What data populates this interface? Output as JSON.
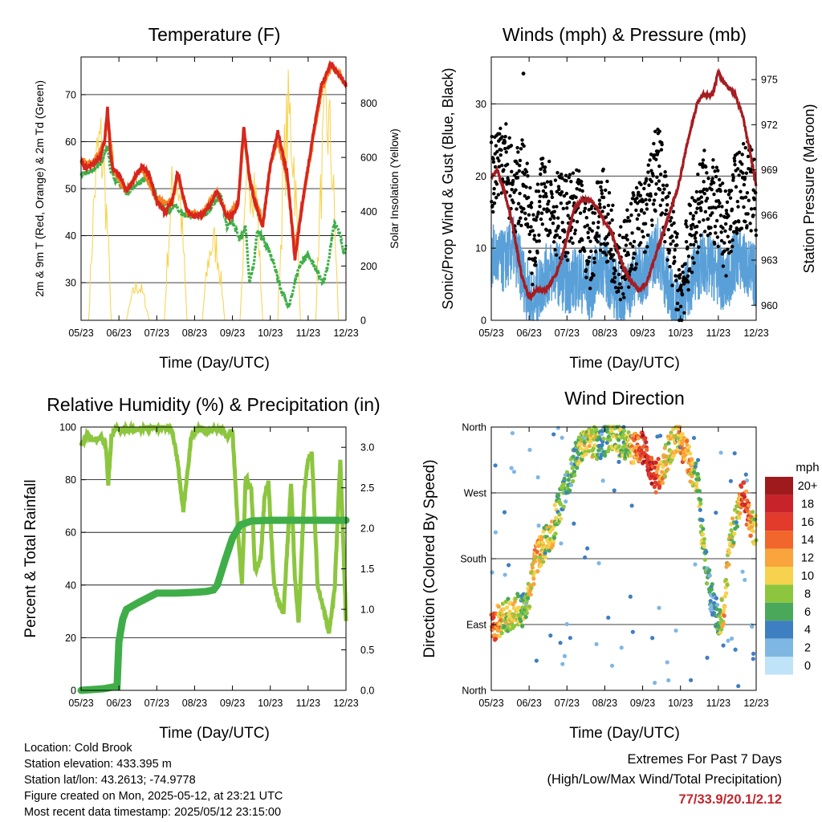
{
  "colors": {
    "temp_red": "#d7261e",
    "temp_orange": "#f58220",
    "dewpoint_green": "#3fae49",
    "solar_yellow": "#f7d24a",
    "wind_blue": "#5aa0d8",
    "gust_black": "#000000",
    "pressure_maroon": "#a51d22",
    "rh_green": "#8cc63f",
    "precip_green": "#3fae49",
    "extremes_red": "#c0272d"
  },
  "panels": {
    "temperature": {
      "title": "Temperature (F)",
      "xlabel": "Time (Day/UTC)",
      "ylabel_left": "2m & 9m T (Red, Orange) & 2m Td (Green)",
      "ylabel_right": "Solar Insolation (Yellow)",
      "yticks_left": [
        "30",
        "40",
        "50",
        "60",
        "70"
      ],
      "yticks_right": [
        "0",
        "200",
        "400",
        "600",
        "800"
      ]
    },
    "winds": {
      "title": "Winds (mph) & Pressure (mb)",
      "xlabel": "Time (Day/UTC)",
      "ylabel_left": "Sonic/Prop Wind & Gust (Blue, Black)",
      "ylabel_right": "Station Pressure (Maroon)",
      "yticks_left": [
        "0",
        "10",
        "20",
        "30"
      ],
      "yticks_right": [
        "960",
        "963",
        "966",
        "969",
        "972",
        "975"
      ]
    },
    "humidity": {
      "title": "Relative Humidity (%) & Precipitation (in)",
      "xlabel": "Time (Day/UTC)",
      "ylabel_left": "Percent & Total Rainfall",
      "yticks_left": [
        "0",
        "20",
        "40",
        "60",
        "80",
        "100"
      ],
      "yticks_right": [
        "0.0",
        "0.5",
        "1.0",
        "1.5",
        "2.0",
        "2.5",
        "3.0"
      ]
    },
    "direction": {
      "title": "Wind Direction",
      "xlabel": "Time (Day/UTC)",
      "ylabel_left": "Direction (Colored By Speed)",
      "yticks_left": [
        "North",
        "East",
        "South",
        "West",
        "North"
      ],
      "legend_title": "mph",
      "legend_labels": [
        "20+",
        "18",
        "16",
        "14",
        "12",
        "10",
        "8",
        "6",
        "4",
        "2",
        "0"
      ],
      "legend_colors": [
        "#9e1a1d",
        "#c8232a",
        "#e23a2b",
        "#f0662b",
        "#f9a43c",
        "#f6d24e",
        "#8cc63f",
        "#4aa85a",
        "#3e7fc1",
        "#7fb7e3",
        "#bfe3f7"
      ]
    }
  },
  "xticks": [
    "05/23",
    "06/23",
    "07/23",
    "08/23",
    "09/23",
    "10/23",
    "11/23",
    "12/23"
  ],
  "info": {
    "location": "Location: Cold Brook",
    "elevation": "Station elevation: 433.395 m",
    "latlon": "Station lat/lon: 43.2613; -74.9778",
    "created": "Figure created on Mon, 2025-05-12, at 23:21 UTC",
    "recent": "Most recent data timestamp: 2025/05/12 23:15:00"
  },
  "extremes": {
    "title": "Extremes For Past 7 Days",
    "subtitle": "(High/Low/Max Wind/Total Precipitation)",
    "values": "77/33.9/20.1/2.12"
  },
  "chart_data": [
    {
      "type": "line",
      "title": "Temperature (F)",
      "xlabel": "Time (Day/UTC)",
      "ylabel": "2m & 9m T (Red, Orange) & 2m Td (Green)",
      "ylabel_right": "Solar Insolation (Yellow)",
      "xlim": [
        0,
        7
      ],
      "ylim": [
        22,
        78
      ],
      "ylim_right": [
        0,
        970
      ],
      "x_tick_labels": [
        "05/23",
        "06/23",
        "07/23",
        "08/23",
        "09/23",
        "10/23",
        "11/23",
        "12/23"
      ],
      "series": [
        {
          "name": "2m T",
          "color": "#d7261e",
          "x": [
            0,
            0.1,
            0.3,
            0.5,
            0.62,
            0.7,
            0.78,
            0.85,
            1.0,
            1.2,
            1.4,
            1.6,
            1.8,
            2.0,
            2.2,
            2.4,
            2.55,
            2.68,
            2.8,
            3.0,
            3.2,
            3.4,
            3.6,
            3.85,
            4.0,
            4.15,
            4.3,
            4.45,
            4.6,
            4.8,
            5.0,
            5.2,
            5.45,
            5.65,
            5.85,
            6.1,
            6.35,
            6.6,
            6.75,
            6.85,
            6.95,
            7.0
          ],
          "y": [
            56,
            54.5,
            55,
            56.5,
            60,
            67,
            57,
            54,
            53,
            49.5,
            52,
            54.5,
            53,
            47.5,
            45,
            47,
            53.5,
            49,
            45,
            44,
            44.5,
            46.5,
            49.5,
            44,
            44,
            47,
            63.5,
            52,
            47,
            42,
            55,
            62,
            53,
            35,
            47,
            60,
            72,
            76.5,
            75,
            74,
            72.5,
            72
          ]
        },
        {
          "name": "9m T",
          "color": "#f58220",
          "x": [
            0,
            0.3,
            0.62,
            0.7,
            0.85,
            1.2,
            1.6,
            2.0,
            2.4,
            2.55,
            2.8,
            3.2,
            3.6,
            3.85,
            4.15,
            4.3,
            4.45,
            4.8,
            5.0,
            5.2,
            5.45,
            5.65,
            5.85,
            6.1,
            6.35,
            6.6,
            6.85,
            7.0
          ],
          "y": [
            56,
            55,
            60,
            66,
            54,
            49.5,
            54.5,
            47.5,
            47,
            53,
            45,
            44.5,
            49.5,
            44,
            47,
            62,
            52,
            42.5,
            55,
            60,
            52,
            37,
            47,
            59,
            71,
            76,
            74,
            72
          ]
        },
        {
          "name": "2m Td",
          "color": "#3fae49",
          "x": [
            0,
            0.2,
            0.4,
            0.55,
            0.62,
            0.7,
            0.78,
            0.9,
            1.2,
            1.5,
            1.8,
            2.0,
            2.3,
            2.5,
            2.7,
            3.0,
            3.3,
            3.5,
            3.7,
            3.85,
            4.0,
            4.2,
            4.35,
            4.45,
            4.55,
            4.65,
            4.75,
            4.95,
            5.1,
            5.3,
            5.5,
            5.65,
            5.8,
            6.0,
            6.2,
            6.4,
            6.5,
            6.6,
            6.7,
            6.85,
            6.95,
            7.0
          ],
          "y": [
            53,
            53.5,
            54.5,
            56,
            57.5,
            59,
            54,
            52,
            49,
            51,
            53,
            48,
            45,
            46.5,
            44.5,
            44,
            44.5,
            47,
            48.5,
            42,
            43,
            39,
            42,
            30,
            33,
            41,
            40,
            37,
            34,
            28,
            25,
            30,
            34,
            36,
            33,
            30,
            33,
            38,
            43,
            40,
            36,
            38
          ]
        },
        {
          "name": "Solar Insolation",
          "color": "#f7d24a",
          "axis": "right",
          "x": [
            0.6,
            1.5,
            2.5,
            3.25,
            4.3,
            4.85,
            5.35,
            6.3,
            6.85
          ],
          "y": [
            820,
            160,
            680,
            180,
            960,
            280,
            940,
            970,
            860
          ]
        }
      ]
    },
    {
      "type": "line",
      "title": "Winds (mph) & Pressure (mb)",
      "xlabel": "Time (Day/UTC)",
      "ylabel": "Sonic/Prop Wind & Gust (Blue, Black)",
      "ylabel_right": "Station Pressure (Maroon)",
      "xlim": [
        0,
        7
      ],
      "ylim": [
        0,
        36.5
      ],
      "ylim_right": [
        959,
        976.5
      ],
      "x_tick_labels": [
        "05/23",
        "06/23",
        "07/23",
        "08/23",
        "09/23",
        "10/23",
        "11/23",
        "12/23"
      ],
      "series": [
        {
          "name": "Sonic/Prop Wind",
          "color": "#5aa0d8",
          "x": [
            0,
            0.3,
            0.6,
            0.9,
            1.1,
            1.4,
            1.7,
            2.0,
            2.3,
            2.6,
            2.9,
            3.2,
            3.5,
            3.8,
            4.1,
            4.4,
            4.7,
            5.0,
            5.3,
            5.6,
            5.9,
            6.2,
            6.5,
            6.8,
            7.0
          ],
          "y": [
            9,
            8,
            10,
            5,
            2,
            6,
            7,
            5,
            6,
            4,
            8,
            5,
            3,
            6,
            7,
            10,
            4,
            1,
            6,
            8,
            7,
            5,
            9,
            7,
            6
          ]
        },
        {
          "name": "Gust",
          "color": "#000000",
          "x": [
            0,
            0.3,
            0.6,
            0.9,
            1.1,
            1.4,
            1.7,
            2.0,
            2.3,
            2.6,
            2.9,
            3.2,
            3.5,
            3.8,
            4.1,
            4.4,
            4.7,
            5.0,
            5.3,
            5.6,
            5.9,
            6.2,
            6.5,
            6.8,
            7.0
          ],
          "y": [
            20,
            24,
            17,
            20,
            9,
            19,
            15,
            14,
            15,
            10,
            16,
            11,
            8,
            13,
            15,
            22,
            13,
            4,
            12,
            18,
            16,
            12,
            18,
            19,
            16
          ]
        },
        {
          "name": "Station Pressure",
          "color": "#a51d22",
          "axis": "right",
          "x": [
            0,
            0.15,
            0.35,
            0.55,
            0.8,
            1.0,
            1.2,
            1.45,
            1.7,
            1.85,
            2.0,
            2.2,
            2.4,
            2.6,
            2.8,
            3.0,
            3.15,
            3.35,
            3.5,
            3.7,
            3.9,
            4.1,
            4.3,
            4.5,
            4.7,
            4.95,
            5.2,
            5.45,
            5.6,
            5.85,
            6.0,
            6.1,
            6.25,
            6.45,
            6.65,
            6.85,
            7.0
          ],
          "y": [
            968.5,
            969,
            967.5,
            965.5,
            962,
            960.5,
            961,
            961,
            962,
            963,
            964.5,
            966.5,
            967,
            967,
            966.5,
            965.5,
            965,
            963.5,
            962.5,
            961.5,
            961,
            961.5,
            963,
            964.5,
            966,
            968,
            971,
            973.5,
            974,
            974,
            975.5,
            975,
            974.5,
            974,
            972.5,
            970,
            968
          ]
        }
      ]
    },
    {
      "type": "line",
      "title": "Relative Humidity (%) & Precipitation (in)",
      "xlabel": "Time (Day/UTC)",
      "ylabel": "Percent & Total Rainfall",
      "xlim": [
        0,
        7
      ],
      "ylim": [
        0,
        100
      ],
      "ylim_right": [
        0,
        3.25
      ],
      "x_tick_labels": [
        "05/23",
        "06/23",
        "07/23",
        "08/23",
        "09/23",
        "10/23",
        "11/23",
        "12/23"
      ],
      "series": [
        {
          "name": "Relative Humidity",
          "color": "#8cc63f",
          "x": [
            0,
            0.15,
            0.3,
            0.55,
            0.65,
            0.72,
            0.8,
            0.9,
            1.2,
            1.5,
            1.9,
            2.2,
            2.4,
            2.55,
            2.7,
            2.9,
            3.0,
            3.2,
            3.5,
            3.75,
            3.85,
            4.0,
            4.15,
            4.25,
            4.35,
            4.5,
            4.6,
            4.75,
            4.85,
            4.95,
            5.1,
            5.25,
            5.35,
            5.55,
            5.65,
            5.75,
            5.9,
            6.0,
            6.1,
            6.25,
            6.4,
            6.55,
            6.7,
            6.85,
            7.0
          ],
          "y": [
            93,
            97,
            95,
            96,
            93,
            78,
            96,
            99,
            99,
            99,
            100,
            100,
            99,
            87,
            68,
            95,
            99,
            99,
            99,
            99,
            96,
            99,
            60,
            40,
            81,
            76,
            45,
            50,
            74,
            79,
            40,
            32,
            30,
            79,
            43,
            25,
            76,
            88,
            90,
            40,
            31,
            22,
            38,
            88,
            27
          ]
        },
        {
          "name": "Total Rainfall",
          "color": "#3fae49",
          "axis": "right",
          "x": [
            0,
            0.3,
            0.6,
            0.95,
            1.0,
            1.1,
            1.2,
            1.5,
            2.0,
            2.5,
            3.0,
            3.3,
            3.5,
            3.6,
            3.8,
            4.0,
            4.2,
            4.5,
            5.0,
            6.0,
            7.0
          ],
          "y": [
            0.0,
            0.01,
            0.02,
            0.05,
            0.6,
            0.88,
            1.0,
            1.08,
            1.2,
            1.2,
            1.21,
            1.22,
            1.24,
            1.3,
            1.6,
            1.88,
            2.04,
            2.09,
            2.1,
            2.1,
            2.1
          ]
        }
      ]
    },
    {
      "type": "scatter",
      "title": "Wind Direction",
      "xlabel": "Time (Day/UTC)",
      "ylabel": "Direction (Colored By Speed)",
      "xlim": [
        0,
        7
      ],
      "ylim": [
        0,
        360
      ],
      "y_tick_labels": [
        "North",
        "East",
        "South",
        "West",
        "North"
      ],
      "x_tick_labels": [
        "05/23",
        "06/23",
        "07/23",
        "08/23",
        "09/23",
        "10/23",
        "11/23",
        "12/23"
      ],
      "legend": {
        "title": "mph",
        "placement": "right"
      },
      "series": [
        {
          "name": "Direction",
          "x": [
            0.05,
            0.2,
            0.35,
            0.5,
            0.65,
            0.85,
            1.0,
            1.15,
            1.3,
            1.45,
            1.6,
            1.75,
            1.9,
            2.1,
            2.3,
            2.5,
            2.7,
            2.9,
            3.1,
            3.3,
            3.5,
            3.7,
            3.9,
            4.1,
            4.3,
            4.5,
            4.7,
            4.9,
            5.1,
            5.3,
            5.45,
            5.6,
            5.8,
            6.0,
            6.15,
            6.3,
            6.5,
            6.65,
            6.8,
            6.95
          ],
          "y": [
            90,
            95,
            100,
            105,
            110,
            110,
            130,
            175,
            190,
            205,
            215,
            245,
            265,
            300,
            330,
            345,
            340,
            335,
            350,
            345,
            340,
            330,
            335,
            325,
            290,
            300,
            330,
            345,
            330,
            300,
            285,
            200,
            130,
            95,
            110,
            200,
            240,
            275,
            235,
            220
          ],
          "speed": [
            14,
            12,
            8,
            9,
            10,
            6,
            9,
            12,
            11,
            8,
            10,
            7,
            6,
            5,
            8,
            9,
            10,
            4,
            6,
            9,
            7,
            10,
            15,
            18,
            17,
            12,
            9,
            10,
            13,
            11,
            8,
            7,
            3,
            5,
            12,
            10,
            8,
            16,
            14,
            9
          ]
        }
      ]
    }
  ]
}
